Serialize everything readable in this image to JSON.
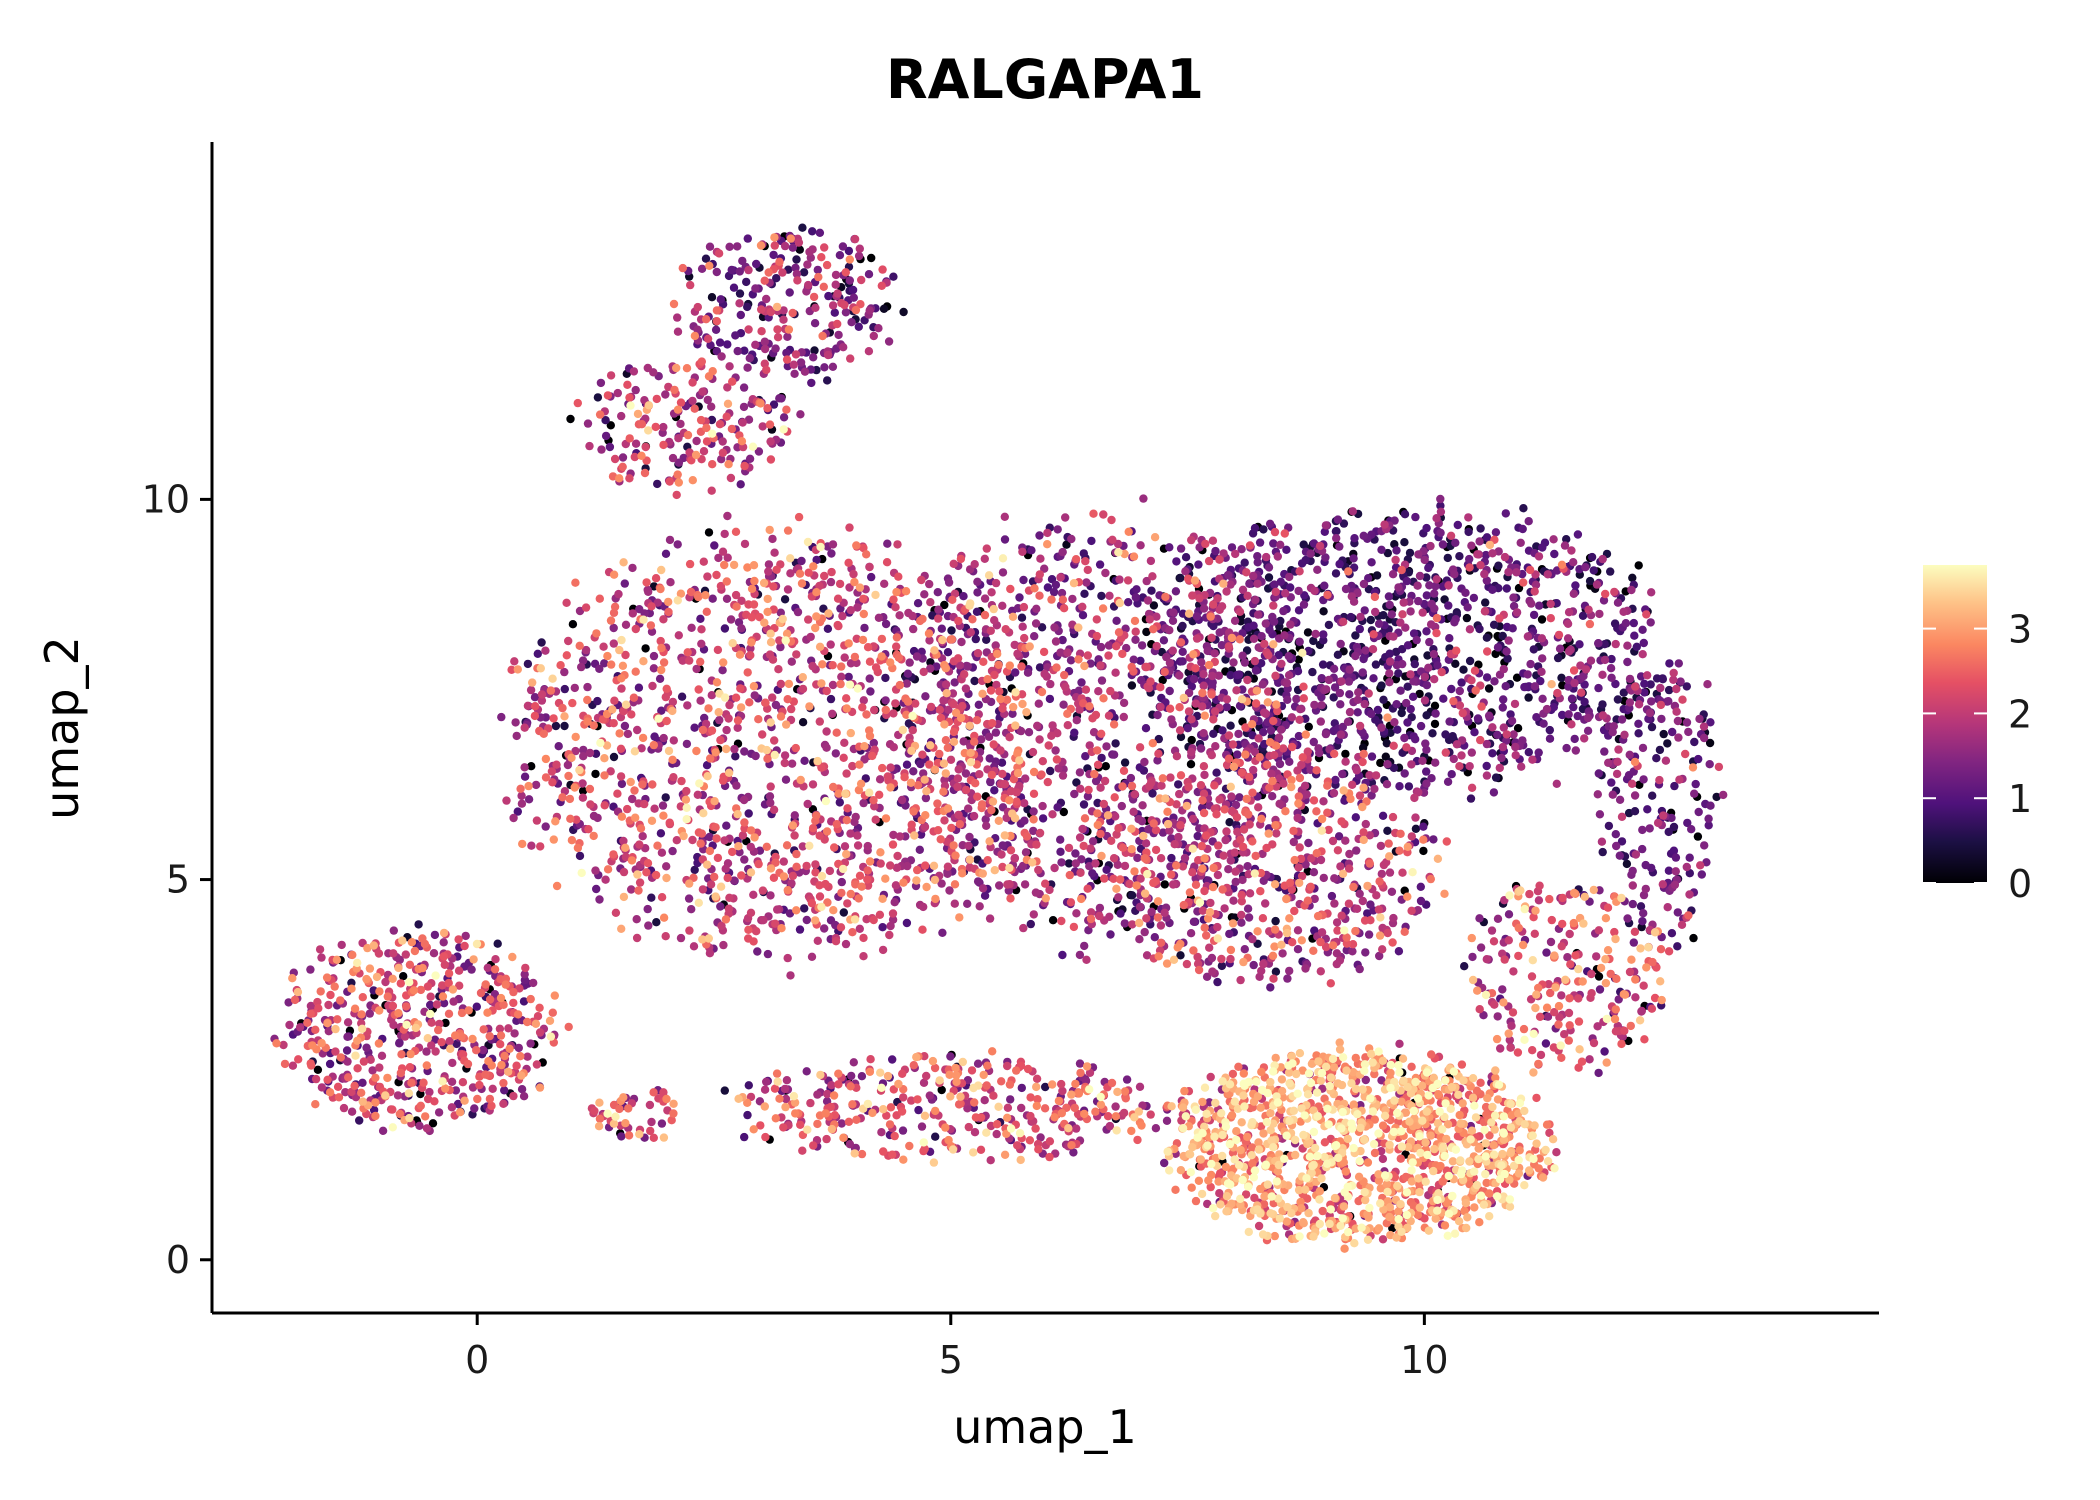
{
  "chart_data": {
    "type": "scatter",
    "title": "RALGAPA1",
    "xlabel": "umap_1",
    "ylabel": "umap_2",
    "xlim": [
      -2.8,
      14.8
    ],
    "ylim": [
      -0.7,
      14.7
    ],
    "xticks": [
      0,
      5,
      10
    ],
    "yticks": [
      0,
      5,
      10
    ],
    "grid": false,
    "colorbar": {
      "colormap": "magma",
      "range": [
        0,
        3.75
      ],
      "ticks": [
        0,
        1,
        2,
        3
      ],
      "placement": "right"
    },
    "clusters": [
      {
        "name": "left-cluster",
        "cx": -0.6,
        "cy": 3.0,
        "rx": 1.5,
        "ry": 1.3,
        "n": 550,
        "mean": 2.0,
        "sd": 0.7
      },
      {
        "name": "left-tail",
        "cx": 1.7,
        "cy": 1.9,
        "rx": 0.5,
        "ry": 0.35,
        "n": 50,
        "mean": 2.4,
        "sd": 0.6
      },
      {
        "name": "top-arm-upper",
        "cx": 3.3,
        "cy": 12.6,
        "rx": 1.2,
        "ry": 1.0,
        "n": 260,
        "mean": 1.5,
        "sd": 0.7
      },
      {
        "name": "top-arm-lower",
        "cx": 2.2,
        "cy": 11.0,
        "rx": 1.2,
        "ry": 0.9,
        "n": 200,
        "mean": 1.9,
        "sd": 0.7
      },
      {
        "name": "main-left",
        "cx": 3.2,
        "cy": 6.8,
        "rx": 2.9,
        "ry": 2.8,
        "n": 1500,
        "mean": 2.0,
        "sd": 0.7
      },
      {
        "name": "main-center",
        "cx": 6.5,
        "cy": 7.0,
        "rx": 2.2,
        "ry": 2.9,
        "n": 1000,
        "mean": 1.7,
        "sd": 0.7
      },
      {
        "name": "main-right-upper",
        "cx": 9.8,
        "cy": 8.0,
        "rx": 2.8,
        "ry": 1.9,
        "n": 1300,
        "mean": 1.1,
        "sd": 0.6
      },
      {
        "name": "main-right-lower",
        "cx": 8.3,
        "cy": 5.2,
        "rx": 1.8,
        "ry": 1.6,
        "n": 600,
        "mean": 1.9,
        "sd": 0.7
      },
      {
        "name": "right-edge",
        "cx": 12.5,
        "cy": 6.0,
        "rx": 0.7,
        "ry": 1.9,
        "n": 200,
        "mean": 1.2,
        "sd": 0.6
      },
      {
        "name": "bottom-arc-left",
        "cx": 5.0,
        "cy": 2.0,
        "rx": 2.4,
        "ry": 0.7,
        "n": 400,
        "mean": 2.2,
        "sd": 0.7
      },
      {
        "name": "bottom-arc-right",
        "cx": 9.3,
        "cy": 1.5,
        "rx": 2.0,
        "ry": 1.3,
        "n": 1300,
        "mean": 2.9,
        "sd": 0.6
      },
      {
        "name": "lower-right-arc",
        "cx": 11.5,
        "cy": 3.8,
        "rx": 1.1,
        "ry": 1.3,
        "n": 250,
        "mean": 2.2,
        "sd": 0.7
      }
    ]
  }
}
